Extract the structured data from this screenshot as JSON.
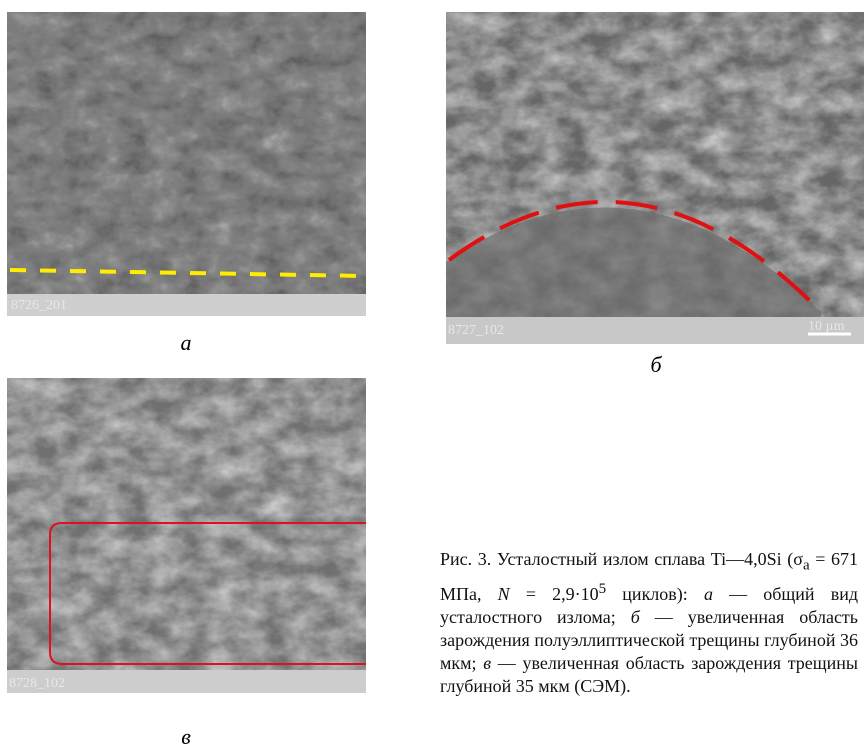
{
  "figure": {
    "panels": [
      {
        "image_id": "8726_201",
        "label": "а"
      },
      {
        "image_id": "8727_102",
        "scale_bar": "10 µm",
        "label": "б"
      },
      {
        "image_id": "8728_102",
        "label": "в"
      }
    ],
    "caption": [
      "Рис. 3. Усталостный излом сплава Ti—4,0Si (σ",
      "a",
      " = 671 МПа, ",
      "N",
      " = 2,9·10",
      "5",
      " циклов): ",
      "а",
      " — общий вид усталостного излома; ",
      "б",
      " — увеличенная область зарождения полуэллиптической трещины глубиной 36 мкм; ",
      "в",
      " — увеличенная область зарождения трещины глубиной 35 мкм (СЭМ)."
    ]
  }
}
